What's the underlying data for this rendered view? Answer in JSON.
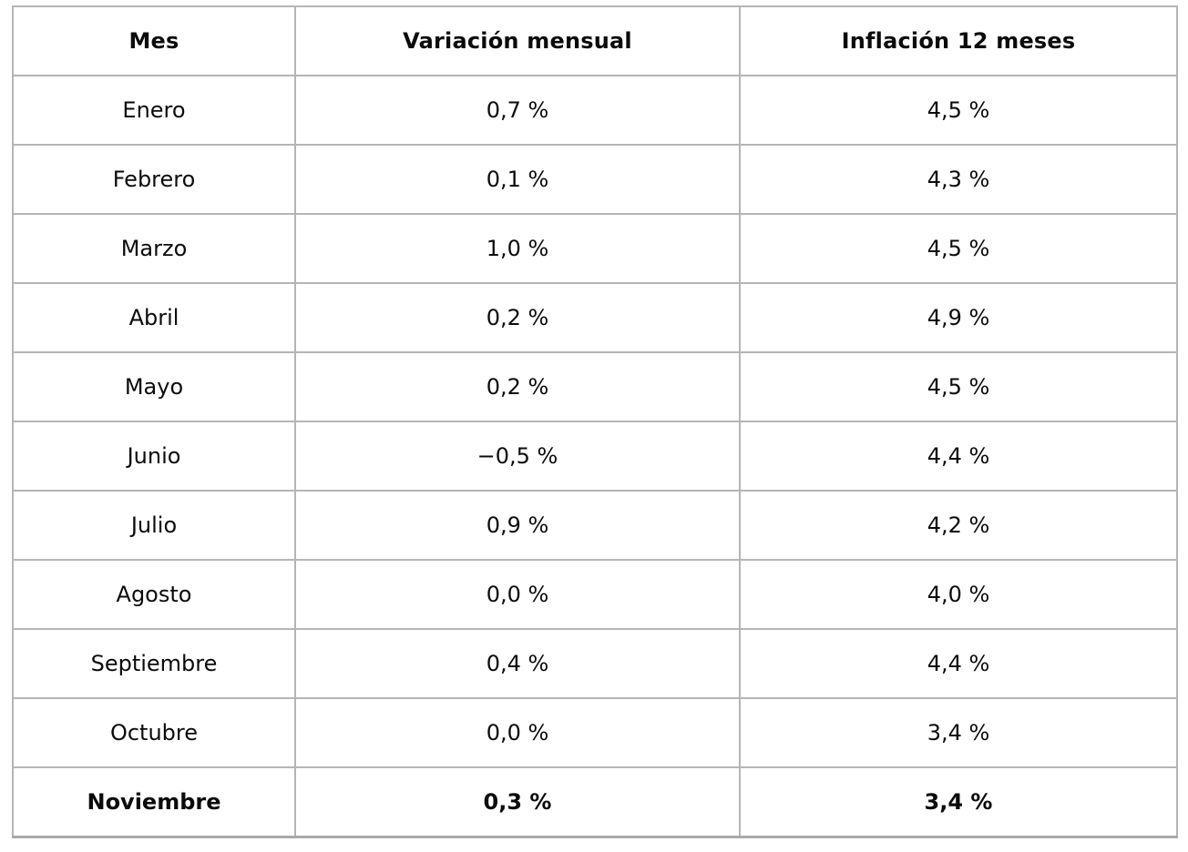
{
  "chart_data": {
    "type": "table",
    "title": "",
    "columns": [
      "Mes",
      "Variación mensual",
      "Inflación 12 meses"
    ],
    "rows": [
      [
        "Enero",
        "0,7 %",
        "4,5 %"
      ],
      [
        "Febrero",
        "0,1 %",
        "4,3 %"
      ],
      [
        "Marzo",
        "1,0 %",
        "4,5 %"
      ],
      [
        "Abril",
        "0,2 %",
        "4,9 %"
      ],
      [
        "Mayo",
        "0,2 %",
        "4,5 %"
      ],
      [
        "Junio",
        "−0,5 %",
        "4,4 %"
      ],
      [
        "Julio",
        "0,9 %",
        "4,2 %"
      ],
      [
        "Agosto",
        "0,0 %",
        "4,0 %"
      ],
      [
        "Septiembre",
        "0,4 %",
        "4,4 %"
      ],
      [
        "Octubre",
        "0,0 %",
        "3,4 %"
      ],
      [
        "Noviembre",
        "0,3 %",
        "3,4 %"
      ]
    ],
    "bold_row_index": 10,
    "numeric": {
      "months": [
        "Enero",
        "Febrero",
        "Marzo",
        "Abril",
        "Mayo",
        "Junio",
        "Julio",
        "Agosto",
        "Septiembre",
        "Octubre",
        "Noviembre"
      ],
      "variacion_mensual_pct": [
        0.7,
        0.1,
        1.0,
        0.2,
        0.2,
        -0.5,
        0.9,
        0.0,
        0.4,
        0.0,
        0.3
      ],
      "inflacion_12_meses_pct": [
        4.5,
        4.3,
        4.5,
        4.9,
        4.5,
        4.4,
        4.2,
        4.0,
        4.4,
        3.4,
        3.4
      ]
    },
    "colors": {
      "border": "#b5b5b5",
      "border_bottom": "#a9a9a9",
      "text": "#0b0b0b",
      "background": "#ffffff"
    }
  }
}
